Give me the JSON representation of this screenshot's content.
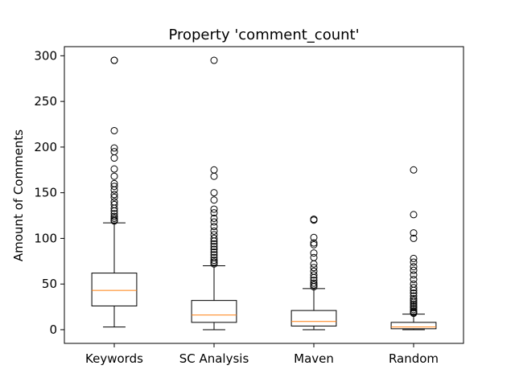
{
  "chart_data": {
    "type": "box",
    "title": "Property 'comment_count'",
    "xlabel": "",
    "ylabel": "Amount of Comments",
    "ylim": [
      -15,
      310
    ],
    "yticks": [
      0,
      50,
      100,
      150,
      200,
      250,
      300
    ],
    "grid": false,
    "categories": [
      "Keywords",
      "SC Analysis",
      "Maven",
      "Random"
    ],
    "series": [
      {
        "q1": 26,
        "median": 43,
        "q3": 62,
        "whisker_low": 3,
        "whisker_high": 117,
        "outliers": [
          295,
          295,
          218,
          199,
          195,
          188,
          176,
          168,
          160,
          157,
          153,
          148,
          145,
          140,
          137,
          133,
          130,
          127,
          124,
          122,
          120,
          119
        ]
      },
      {
        "q1": 8,
        "median": 16,
        "q3": 32,
        "whisker_low": 0,
        "whisker_high": 70,
        "outliers": [
          295,
          175,
          168,
          150,
          142,
          132,
          128,
          122,
          118,
          113,
          108,
          104,
          100,
          97,
          94,
          91,
          88,
          85,
          82,
          79,
          76,
          74,
          72
        ]
      },
      {
        "q1": 4,
        "median": 9,
        "q3": 21,
        "whisker_low": 0,
        "whisker_high": 45,
        "outliers": [
          121,
          120,
          101,
          95,
          93,
          84,
          79,
          72,
          68,
          64,
          60,
          57,
          54,
          51,
          49,
          47
        ]
      },
      {
        "q1": 1,
        "median": 3,
        "q3": 8,
        "whisker_low": 0,
        "whisker_high": 17,
        "outliers": [
          175,
          126,
          106,
          100,
          78,
          74,
          69,
          65,
          60,
          55,
          50,
          46,
          43,
          40,
          37,
          34,
          32,
          30,
          28,
          26,
          24,
          22,
          20,
          19,
          18
        ]
      }
    ],
    "colors": {
      "box": "#000000",
      "median": "#ff7f0e",
      "outlier": "#000000"
    }
  }
}
